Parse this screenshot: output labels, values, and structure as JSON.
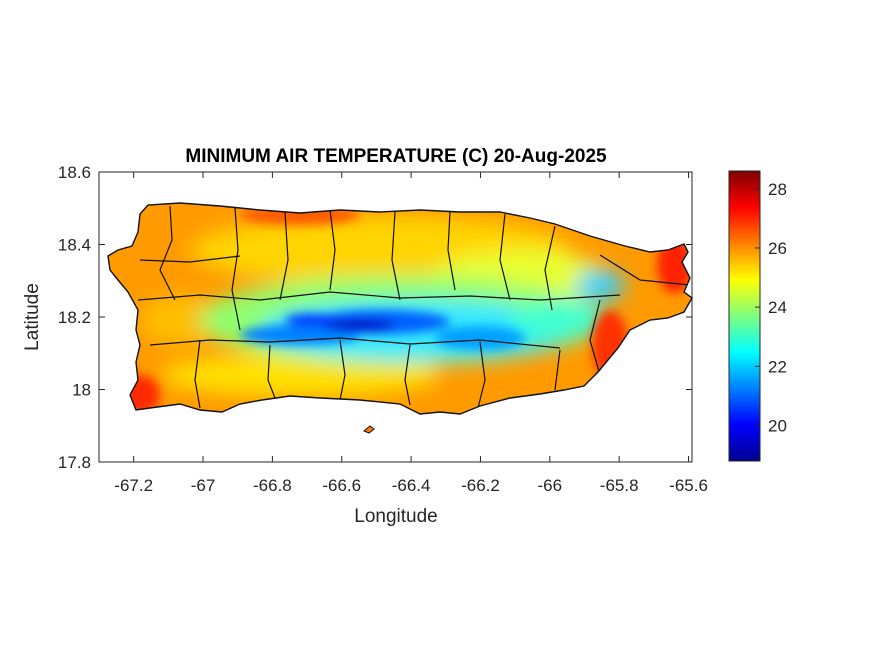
{
  "chart_data": {
    "type": "heatmap",
    "title": "MINIMUM AIR TEMPERATURE (C) 20-Aug-2025",
    "xlabel": "Longitude",
    "ylabel": "Latitude",
    "xlim": [
      -67.3,
      -65.59
    ],
    "ylim": [
      17.8,
      18.6
    ],
    "xticks": [
      -67.2,
      -67,
      -66.8,
      -66.6,
      -66.4,
      -66.2,
      -66,
      -65.8,
      -65.6
    ],
    "xtick_labels": [
      "-67.2",
      "-67",
      "-66.8",
      "-66.6",
      "-66.4",
      "-66.2",
      "-66",
      "-65.8",
      "-65.6"
    ],
    "yticks": [
      17.8,
      18,
      18.2,
      18.4,
      18.6
    ],
    "ytick_labels": [
      "17.8",
      "18",
      "18.2",
      "18.4",
      "18.6"
    ],
    "colorbar": {
      "colormap": "jet",
      "range": [
        18.8,
        28.6
      ],
      "ticks": [
        20,
        22,
        24,
        26,
        28
      ],
      "tick_labels": [
        "20",
        "22",
        "24",
        "26",
        "28"
      ]
    },
    "grid": false,
    "cold_core": {
      "lon": -66.55,
      "lat": 18.17,
      "min_temp": 19
    }
  }
}
